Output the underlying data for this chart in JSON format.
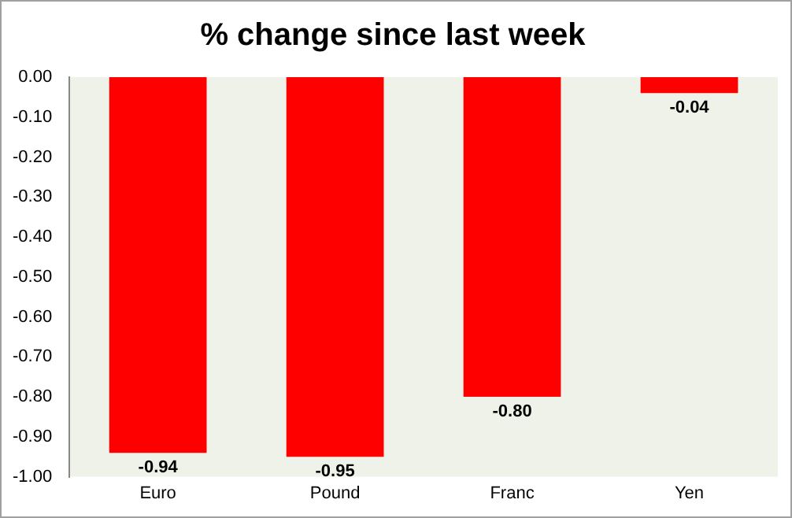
{
  "chart_data": {
    "type": "bar",
    "title": "% change since last week",
    "categories": [
      "Euro",
      "Pound",
      "Franc",
      "Yen"
    ],
    "values": [
      -0.94,
      -0.95,
      -0.8,
      -0.04
    ],
    "value_labels": [
      "-0.94",
      "-0.95",
      "-0.80",
      "-0.04"
    ],
    "color": "#ff0000",
    "ylim": [
      -1,
      0
    ],
    "yticks": [
      {
        "value": 0,
        "label": "0.00"
      },
      {
        "value": -0.1,
        "label": "-0.10"
      },
      {
        "value": -0.2,
        "label": "-0.20"
      },
      {
        "value": -0.3,
        "label": "-0.30"
      },
      {
        "value": -0.4,
        "label": "-0.40"
      },
      {
        "value": -0.5,
        "label": "-0.50"
      },
      {
        "value": -0.6,
        "label": "-0.60"
      },
      {
        "value": -0.7,
        "label": "-0.70"
      },
      {
        "value": -0.8,
        "label": "-0.80"
      },
      {
        "value": -0.9,
        "label": "-0.90"
      },
      {
        "value": -1,
        "label": "-1.00"
      }
    ],
    "grid": false,
    "legend": false
  }
}
